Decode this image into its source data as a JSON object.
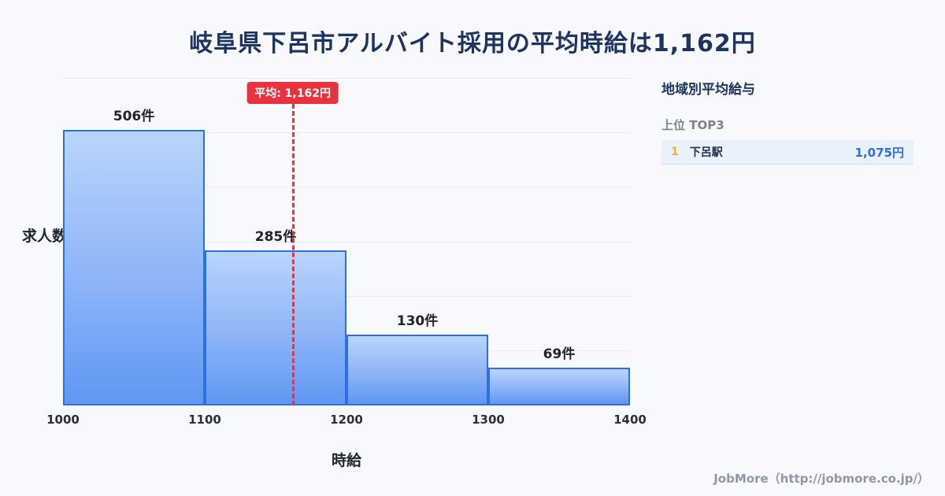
{
  "page": {
    "title": "岐阜県下呂市アルバイト採用の平均時給は1,162円",
    "footer": "JobMore（http://jobmore.co.jp/）"
  },
  "chart_data": {
    "type": "bar",
    "title": "岐阜県下呂市アルバイト採用の平均時給は1,162円",
    "xlabel": "時給",
    "ylabel": "求人数",
    "x_range": [
      1000,
      1400
    ],
    "bin_width": 100,
    "bins": [
      1000,
      1100,
      1200,
      1300
    ],
    "values": [
      506,
      285,
      130,
      69
    ],
    "value_labels": [
      "506件",
      "285件",
      "130件",
      "69件"
    ],
    "x_ticks": [
      "1000",
      "1100",
      "1200",
      "1300",
      "1400"
    ],
    "ylim": [
      0,
      600
    ],
    "grid_step": 100,
    "grid": true,
    "mean": {
      "value": 1162,
      "label": "平均: 1,162円"
    },
    "colors": {
      "bar_top": "#b9d5fb",
      "bar_bottom": "#5f97f3",
      "bar_border": "#2e6fe2",
      "mean_line": "#e8333f",
      "title_text": "#1d3461",
      "background": "#f7f9fc",
      "rank_number": "#f2b01e",
      "wage_value": "#2e6fe2"
    }
  },
  "sidebar": {
    "heading": "地域別平均給与",
    "subheading": "上位 TOP3",
    "rows": [
      {
        "rank": "1",
        "name": "下呂駅",
        "value": "1,075円"
      }
    ]
  }
}
